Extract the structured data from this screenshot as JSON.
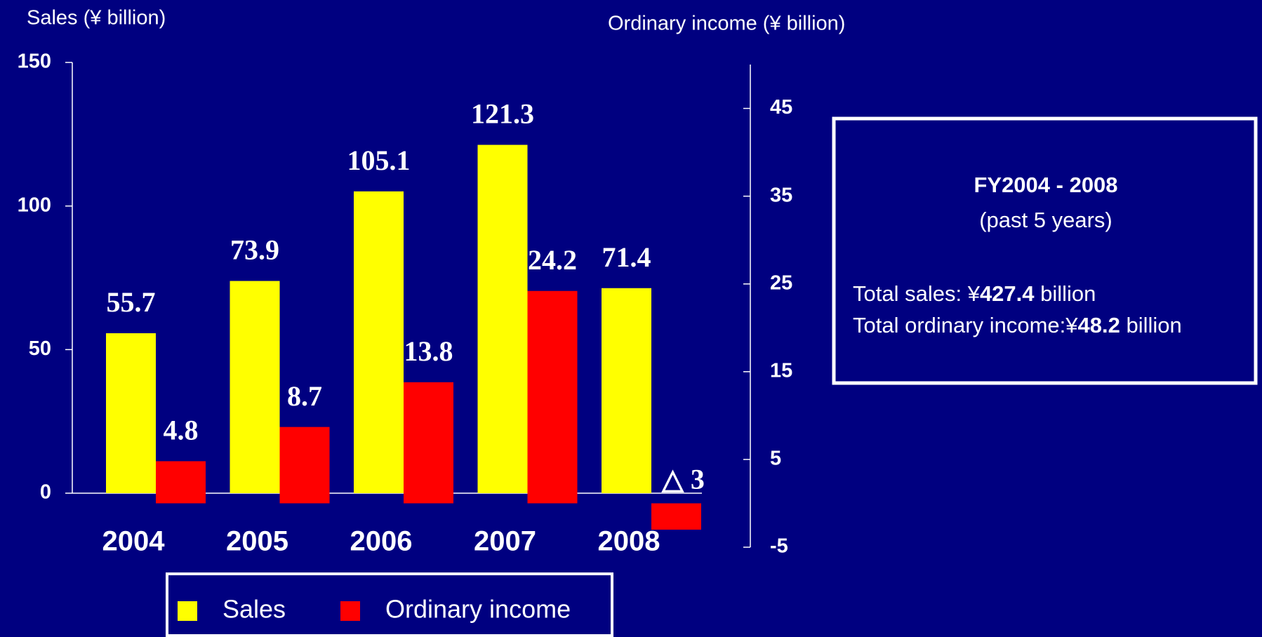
{
  "chart_data": {
    "type": "bar",
    "categories": [
      "2004",
      "2005",
      "2006",
      "2007",
      "2008"
    ],
    "series": [
      {
        "name": "Sales",
        "color": "#ffff00",
        "values": [
          55.7,
          73.9,
          105.1,
          121.3,
          71.4
        ]
      },
      {
        "name": "Ordinary income",
        "color": "#ff0000",
        "axis": "y2",
        "values": [
          4.8,
          8.7,
          13.8,
          24.2,
          -3
        ],
        "value_labels": [
          "4.8",
          "8.7",
          "13.8",
          "24.2",
          "△ 3"
        ]
      }
    ],
    "y_label": "Sales (¥ billion)",
    "y2_label": "Ordinary income (¥ billion)",
    "ylim": [
      0,
      150
    ],
    "yticks": [
      0,
      50,
      100,
      150
    ],
    "y2lim": [
      -5,
      50
    ],
    "y2ticks": [
      -5,
      5,
      15,
      25,
      35,
      45
    ],
    "legend": "bottom",
    "info_box": {
      "title": "FY2004 - 2008",
      "subtitle": "(past 5 years)",
      "lines": [
        {
          "label": "Total sales:  ¥",
          "value": "427.4",
          "unit": " billion"
        },
        {
          "label": "Total ordinary income:¥",
          "value": "48.2",
          "unit": " billion"
        }
      ]
    }
  }
}
